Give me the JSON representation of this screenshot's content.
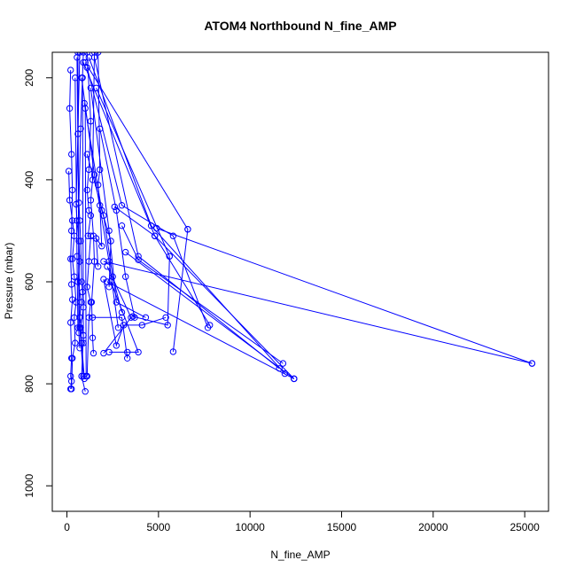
{
  "chart_data": {
    "type": "line",
    "title": "ATOM4 Northbound N_fine_AMP",
    "xlabel": "N_fine_AMP",
    "ylabel": "Pressure (mbar)",
    "xlim": [
      -800,
      26300
    ],
    "ylim": [
      1050,
      150
    ],
    "y_reversed": true,
    "x_ticks": [
      0,
      5000,
      10000,
      15000,
      20000,
      25000
    ],
    "y_ticks": [
      200,
      400,
      600,
      800,
      1000
    ],
    "x_tick_labels": [
      "0",
      "5000",
      "10000",
      "15000",
      "20000",
      "25000"
    ],
    "y_tick_labels": [
      "200",
      "400",
      "600",
      "800",
      "1000"
    ],
    "series_color": "#0000ff",
    "marker": "open-circle",
    "grid": false,
    "series": [
      {
        "points": [
          [
            200,
            185
          ],
          [
            150,
            260
          ],
          [
            250,
            350
          ],
          [
            300,
            420
          ],
          [
            250,
            500
          ],
          [
            200,
            555
          ],
          [
            250,
            605
          ],
          [
            300,
            635
          ],
          [
            200,
            680
          ],
          [
            250,
            750
          ],
          [
            200,
            785
          ],
          [
            250,
            795
          ],
          [
            200,
            810
          ]
        ]
      },
      {
        "points": [
          [
            100,
            383
          ],
          [
            150,
            440
          ],
          [
            300,
            480
          ],
          [
            400,
            510
          ],
          [
            300,
            555
          ],
          [
            400,
            590
          ],
          [
            500,
            640
          ],
          [
            400,
            670
          ],
          [
            450,
            720
          ],
          [
            300,
            750
          ],
          [
            250,
            810
          ]
        ]
      },
      {
        "points": [
          [
            700,
            150
          ],
          [
            600,
            310
          ],
          [
            500,
            448
          ],
          [
            550,
            480
          ],
          [
            650,
            520
          ],
          [
            700,
            560
          ],
          [
            600,
            600
          ],
          [
            800,
            640
          ],
          [
            700,
            670
          ],
          [
            900,
            705
          ],
          [
            800,
            785
          ],
          [
            1000,
            815
          ]
        ]
      },
      {
        "points": [
          [
            900,
            150
          ],
          [
            750,
            300
          ],
          [
            650,
            445
          ],
          [
            700,
            480
          ],
          [
            750,
            520
          ],
          [
            800,
            600
          ],
          [
            850,
            620
          ],
          [
            900,
            650
          ],
          [
            750,
            690
          ],
          [
            800,
            720
          ],
          [
            950,
            790
          ]
        ]
      },
      {
        "points": [
          [
            1100,
            150
          ],
          [
            1300,
            285
          ],
          [
            1200,
            380
          ],
          [
            1100,
            420
          ],
          [
            1200,
            460
          ],
          [
            1300,
            470
          ],
          [
            1150,
            510
          ],
          [
            1300,
            510
          ],
          [
            1200,
            560
          ],
          [
            1100,
            610
          ],
          [
            1300,
            640
          ],
          [
            1200,
            670
          ],
          [
            1100,
            785
          ]
        ]
      },
      {
        "points": [
          [
            1500,
            150
          ],
          [
            1400,
            400
          ],
          [
            1300,
            440
          ],
          [
            1450,
            510
          ],
          [
            1500,
            560
          ],
          [
            1350,
            640
          ],
          [
            1400,
            710
          ],
          [
            1450,
            740
          ]
        ]
      },
      {
        "points": [
          [
            1700,
            150
          ],
          [
            1800,
            380
          ],
          [
            1700,
            410
          ],
          [
            1800,
            450
          ],
          [
            1900,
            530
          ],
          [
            1600,
            515
          ],
          [
            1700,
            570
          ]
        ]
      },
      {
        "points": [
          [
            6600,
            497
          ],
          [
            5800,
            737
          ]
        ]
      },
      {
        "points": [
          [
            2600,
            453
          ],
          [
            4800,
            510
          ],
          [
            7800,
            685
          ]
        ]
      },
      {
        "points": [
          [
            3000,
            490
          ],
          [
            3900,
            557
          ],
          [
            11800,
            760
          ]
        ]
      },
      {
        "points": [
          [
            3200,
            542
          ],
          [
            12400,
            790
          ]
        ]
      },
      {
        "points": [
          [
            4900,
            495
          ],
          [
            25400,
            760
          ]
        ]
      },
      {
        "points": [
          [
            5600,
            550
          ],
          [
            5500,
            685
          ],
          [
            3600,
            668
          ]
        ]
      },
      {
        "points": [
          [
            2200,
            570
          ],
          [
            3500,
            670
          ],
          [
            2000,
            740
          ]
        ]
      },
      {
        "points": [
          [
            2400,
            600
          ],
          [
            3900,
            738
          ],
          [
            2300,
            738
          ],
          [
            3300,
            738
          ]
        ]
      },
      {
        "points": [
          [
            2000,
            595
          ],
          [
            2700,
            725
          ],
          [
            3100,
            685
          ],
          [
            4100,
            685
          ],
          [
            5400,
            670
          ]
        ]
      },
      {
        "points": [
          [
            1400,
            670
          ],
          [
            3000,
            670
          ],
          [
            3300,
            750
          ]
        ]
      },
      {
        "points": [
          [
            1800,
            300
          ],
          [
            2700,
            460
          ],
          [
            3200,
            590
          ],
          [
            3700,
            670
          ]
        ]
      },
      {
        "points": [
          [
            1100,
            350
          ],
          [
            2000,
            470
          ],
          [
            2500,
            590
          ],
          [
            3000,
            660
          ]
        ]
      },
      {
        "points": [
          [
            1300,
            220
          ],
          [
            2300,
            500
          ],
          [
            2700,
            640
          ],
          [
            4300,
            670
          ]
        ]
      },
      {
        "points": [
          [
            800,
            200
          ],
          [
            1500,
            390
          ],
          [
            2300,
            560
          ],
          [
            2800,
            690
          ]
        ]
      },
      {
        "points": [
          [
            950,
            250
          ],
          [
            1900,
            460
          ],
          [
            2400,
            520
          ],
          [
            2300,
            610
          ]
        ]
      },
      {
        "points": [
          [
            1100,
            180
          ],
          [
            3000,
            450
          ],
          [
            5800,
            510
          ],
          [
            7700,
            690
          ]
        ]
      },
      {
        "points": [
          [
            1200,
            160
          ],
          [
            4600,
            490
          ],
          [
            11900,
            780
          ]
        ]
      },
      {
        "points": [
          [
            1000,
            170
          ],
          [
            6600,
            497
          ]
        ]
      },
      {
        "points": [
          [
            900,
            170
          ],
          [
            4800,
            510
          ],
          [
            12400,
            790
          ]
        ]
      },
      {
        "points": [
          [
            1500,
            160
          ],
          [
            3900,
            550
          ],
          [
            11600,
            770
          ]
        ]
      },
      {
        "points": [
          [
            1600,
            220
          ],
          [
            5600,
            550
          ]
        ]
      },
      {
        "points": [
          [
            600,
            150
          ],
          [
            650,
            700
          ],
          [
            700,
            730
          ]
        ]
      },
      {
        "points": [
          [
            550,
            160
          ],
          [
            700,
            690
          ],
          [
            900,
            785
          ]
        ]
      },
      {
        "points": [
          [
            450,
            200
          ],
          [
            550,
            550
          ],
          [
            600,
            690
          ]
        ]
      },
      {
        "points": [
          [
            850,
            200
          ],
          [
            900,
            720
          ]
        ]
      },
      {
        "points": [
          [
            1000,
            260
          ],
          [
            1050,
            785
          ]
        ]
      },
      {
        "points": [
          [
            2000,
            560
          ],
          [
            25400,
            760
          ]
        ]
      },
      {
        "points": [
          [
            2200,
            600
          ],
          [
            12400,
            790
          ]
        ]
      }
    ]
  }
}
